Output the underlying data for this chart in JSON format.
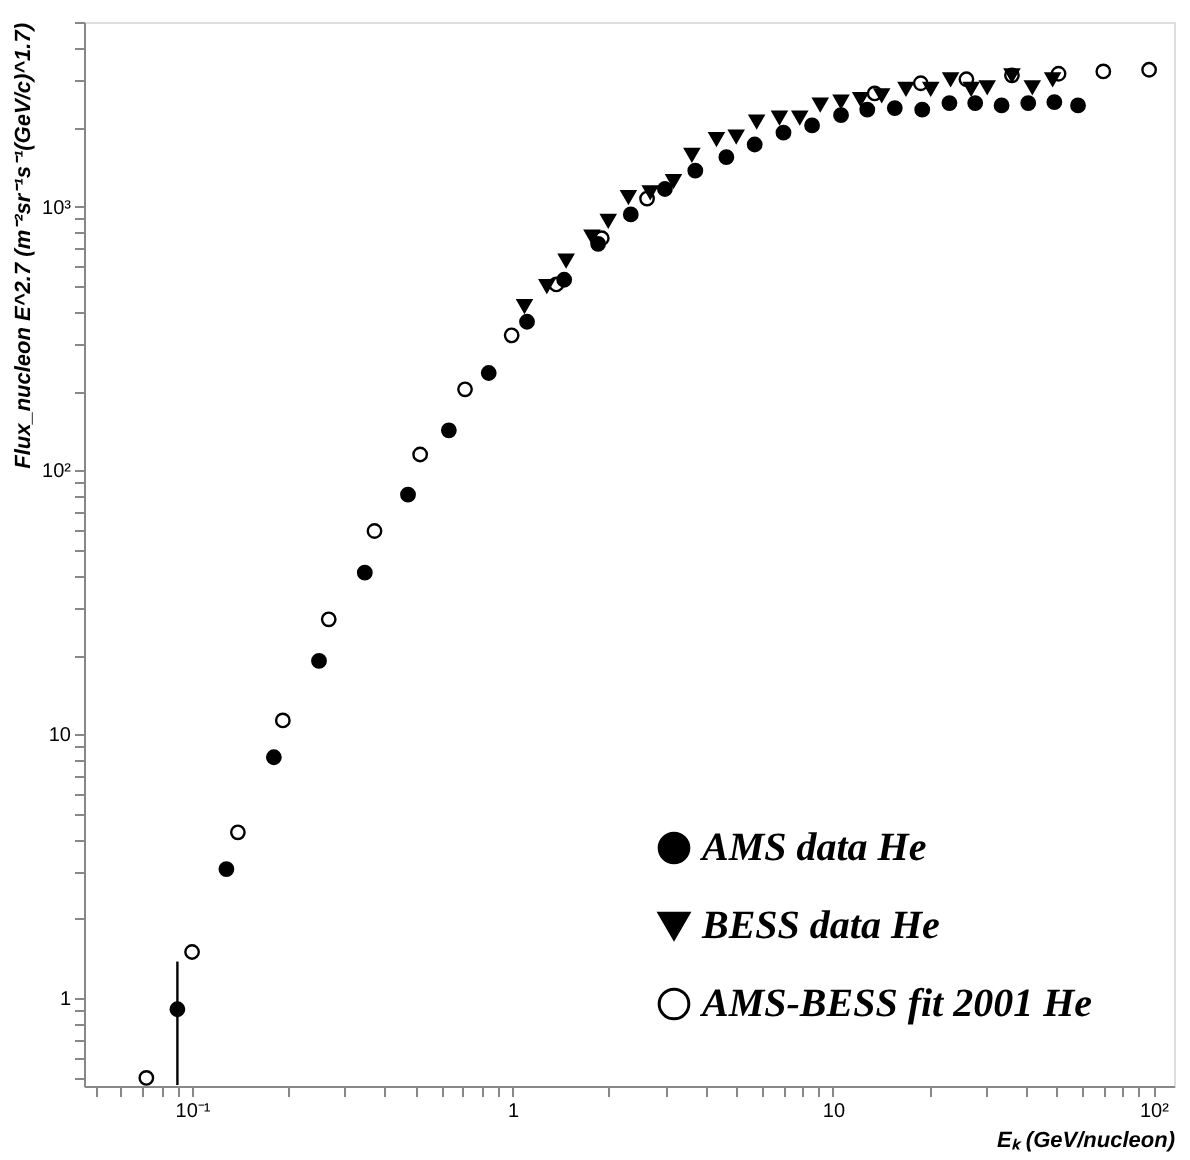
{
  "chart_data": {
    "type": "scatter",
    "xlabel": "Eₖ (GeV/nucleon)",
    "ylabel": "Flux_nucleon E^2.7 (m⁻²sr⁻¹s⁻¹(GeV/c)^1.7)",
    "log": "xy",
    "xlim": [
      0.046,
      116
    ],
    "ylim": [
      0.466,
      5000
    ],
    "xticks": [
      {
        "value": 0.05,
        "label": null
      },
      {
        "value": 0.06,
        "label": null
      },
      {
        "value": 0.07,
        "label": null
      },
      {
        "value": 0.08,
        "label": null
      },
      {
        "value": 0.09,
        "label": null
      },
      {
        "value": 0.1,
        "label": "10⁻¹"
      },
      {
        "value": 0.2,
        "label": null
      },
      {
        "value": 0.3,
        "label": null
      },
      {
        "value": 0.4,
        "label": null
      },
      {
        "value": 0.5,
        "label": null
      },
      {
        "value": 0.6,
        "label": null
      },
      {
        "value": 0.7,
        "label": null
      },
      {
        "value": 0.8,
        "label": null
      },
      {
        "value": 0.9,
        "label": null
      },
      1,
      {
        "value": 2,
        "label": null
      },
      {
        "value": 3,
        "label": null
      },
      {
        "value": 4,
        "label": null
      },
      {
        "value": 5,
        "label": null
      },
      {
        "value": 6,
        "label": null
      },
      {
        "value": 7,
        "label": null
      },
      {
        "value": 8,
        "label": null
      },
      {
        "value": 9,
        "label": null
      },
      10,
      {
        "value": 20,
        "label": null
      },
      {
        "value": 30,
        "label": null
      },
      {
        "value": 40,
        "label": null
      },
      {
        "value": 50,
        "label": null
      },
      {
        "value": 60,
        "label": null
      },
      {
        "value": 70,
        "label": null
      },
      {
        "value": 80,
        "label": null
      },
      {
        "value": 90,
        "label": null
      },
      {
        "value": 100,
        "label": "10²"
      }
    ],
    "yticks": [
      {
        "value": 0.5,
        "label": null
      },
      {
        "value": 0.6,
        "label": null
      },
      {
        "value": 0.7,
        "label": null
      },
      {
        "value": 0.8,
        "label": null
      },
      {
        "value": 0.9,
        "label": null
      },
      1,
      {
        "value": 2,
        "label": null
      },
      {
        "value": 3,
        "label": null
      },
      {
        "value": 4,
        "label": null
      },
      {
        "value": 5,
        "label": null
      },
      {
        "value": 6,
        "label": null
      },
      {
        "value": 7,
        "label": null
      },
      {
        "value": 8,
        "label": null
      },
      {
        "value": 9,
        "label": null
      },
      10,
      {
        "value": 20,
        "label": null
      },
      {
        "value": 30,
        "label": null
      },
      {
        "value": 40,
        "label": null
      },
      {
        "value": 50,
        "label": null
      },
      {
        "value": 60,
        "label": null
      },
      {
        "value": 70,
        "label": null
      },
      {
        "value": 80,
        "label": null
      },
      {
        "value": 90,
        "label": null
      },
      {
        "value": 100,
        "label": "10²"
      },
      {
        "value": 200,
        "label": null
      },
      {
        "value": 300,
        "label": null
      },
      {
        "value": 400,
        "label": null
      },
      {
        "value": 500,
        "label": null
      },
      {
        "value": 600,
        "label": null
      },
      {
        "value": 700,
        "label": null
      },
      {
        "value": 800,
        "label": null
      },
      {
        "value": 900,
        "label": null
      },
      {
        "value": 1000,
        "label": "10³"
      },
      {
        "value": 2000,
        "label": null
      },
      {
        "value": 3000,
        "label": null
      },
      {
        "value": 4000,
        "label": null
      },
      {
        "value": 5000,
        "label": null
      }
    ],
    "grid": false,
    "legend": "bottom right",
    "series": [
      {
        "name": "AMS data   He",
        "color": "#000000",
        "marker": "circle",
        "x": [
          0.09,
          0.128,
          0.18,
          0.249,
          0.346,
          0.472,
          0.633,
          0.843,
          1.11,
          1.45,
          1.85,
          2.34,
          2.99,
          3.72,
          4.65,
          5.7,
          7.01,
          8.61,
          10.6,
          12.8,
          15.6,
          19.0,
          23.1,
          27.8,
          33.6,
          40.7,
          49.1,
          58.2
        ],
        "values": [
          0.91,
          3.09,
          8.2,
          19.0,
          41,
          81,
          142,
          234,
          366,
          528,
          722,
          933,
          1165,
          1367,
          1538,
          1718,
          1905,
          2028,
          2218,
          2328,
          2360,
          2328,
          2466,
          2466,
          2415,
          2466,
          2484,
          2415
        ],
        "errors": [
          [
            0.47,
            1.38
          ],
          null,
          null,
          null,
          null,
          null,
          null,
          null,
          null,
          null,
          null,
          null,
          null,
          null,
          null,
          null,
          null,
          null,
          null,
          null,
          null,
          null,
          null,
          null,
          null,
          null,
          null,
          null
        ]
      },
      {
        "name": "BESS data   He",
        "color": "#000000",
        "marker": "triangle",
        "x": [
          1.09,
          1.28,
          1.47,
          1.77,
          1.99,
          2.3,
          2.69,
          3.18,
          3.63,
          4.33,
          4.99,
          5.78,
          6.81,
          7.88,
          9.13,
          10.6,
          12.2,
          14.2,
          16.9,
          20.2,
          23.3,
          27.0,
          30.3,
          36.2,
          41.9,
          48.5
        ],
        "values": [
          420,
          500,
          624,
          769,
          883,
          1087,
          1133,
          1248,
          1570,
          1803,
          1843,
          2100,
          2173,
          2173,
          2432,
          2500,
          2552,
          2640,
          2794,
          2794,
          3034,
          2794,
          2832,
          3141,
          2832,
          3034
        ]
      },
      {
        "name": "AMS-BESS fit 2001   He",
        "color": "#000000",
        "marker": "circle",
        "x": [
          0.072,
          0.1,
          0.139,
          0.192,
          0.267,
          0.371,
          0.515,
          0.711,
          0.994,
          1.37,
          1.9,
          2.63,
          13.5,
          18.8,
          26.1,
          36.2,
          50.6,
          69.8,
          97.0
        ],
        "values": [
          0.5,
          1.5,
          4.26,
          11.3,
          27.3,
          59,
          115,
          203,
          325,
          507,
          758,
          1072,
          2681,
          2931,
          3034,
          3141,
          3184,
          3250,
          3296
        ]
      }
    ]
  }
}
